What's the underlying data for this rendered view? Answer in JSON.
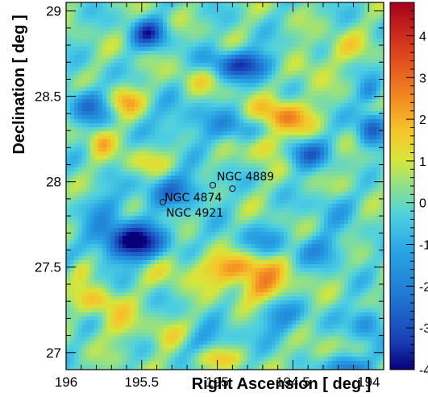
{
  "chart_data": {
    "type": "heatmap",
    "xlabel": "Right Ascension [ deg ]",
    "ylabel": "Declination [ deg ]",
    "xlim": [
      196.0,
      193.9
    ],
    "ylim": [
      26.9,
      29.05
    ],
    "x_ticks": [
      "194",
      "194.5",
      "195",
      "195.5",
      "196"
    ],
    "y_ticks": [
      "27",
      "27.5",
      "28",
      "28.5",
      "29"
    ],
    "colorbar": {
      "range": [
        -4,
        4.8
      ],
      "ticks": [
        "4",
        "3",
        "2",
        "1",
        "0",
        "-1",
        "-2",
        "-3",
        "-4"
      ]
    },
    "annotations": [
      {
        "label": "NGC 4874",
        "ra": 194.9,
        "dec": 27.96
      },
      {
        "label": "NGC 4889",
        "ra": 195.03,
        "dec": 27.98
      },
      {
        "label": "NGC 4921",
        "ra": 195.36,
        "dec": 27.88
      }
    ],
    "grid": false
  }
}
